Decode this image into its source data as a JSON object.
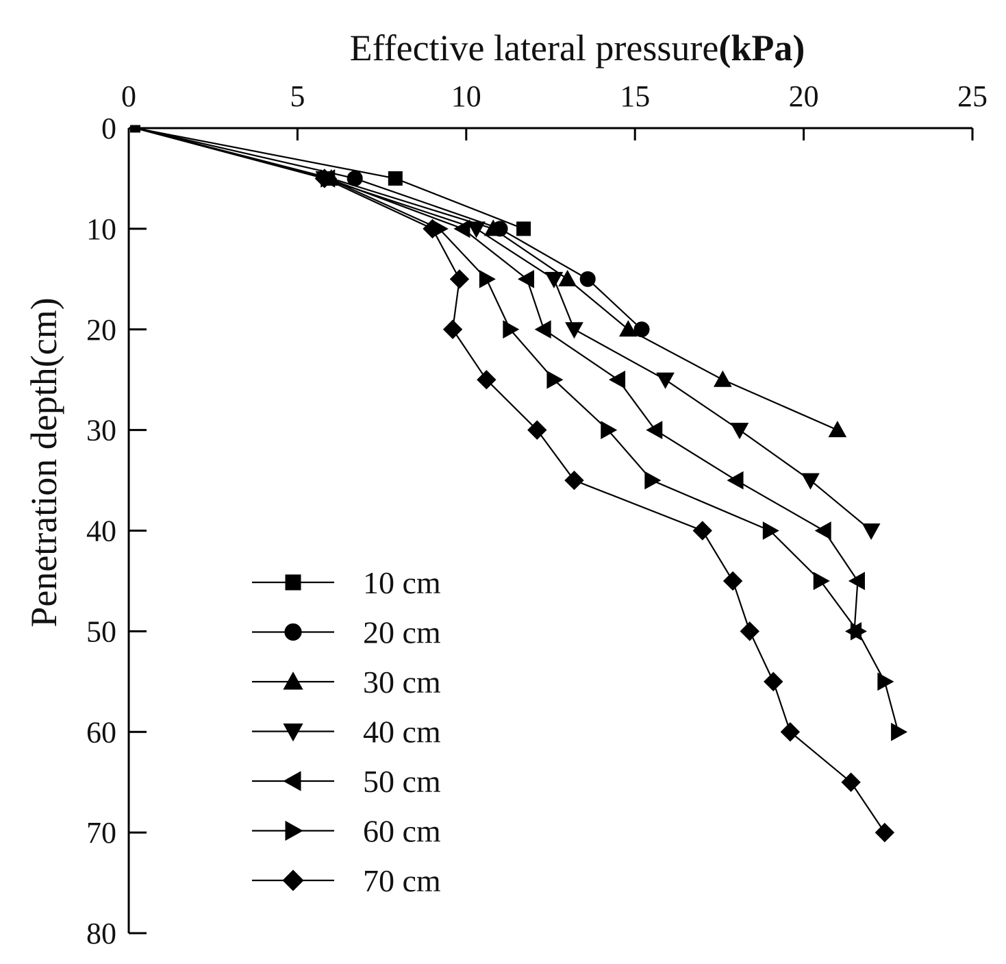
{
  "chart_data": {
    "type": "line",
    "title": "Effective lateral pressure",
    "title_unit": "(kPa)",
    "xlabel": "Effective lateral pressure (kPa)",
    "ylabel": "Penetration depth(cm)",
    "x_axis_position": "top",
    "y_axis_inverted": true,
    "xlim": [
      0,
      25
    ],
    "ylim": [
      0,
      80
    ],
    "xticks": [
      0,
      5,
      10,
      15,
      20,
      25
    ],
    "yticks": [
      0,
      10,
      20,
      30,
      40,
      50,
      60,
      70,
      80
    ],
    "grid": false,
    "legend_position": "bottom-left",
    "series": [
      {
        "name": "10 cm",
        "marker": "square",
        "points": [
          [
            0.2,
            0
          ],
          [
            7.9,
            5
          ],
          [
            11.7,
            10
          ]
        ]
      },
      {
        "name": "20 cm",
        "marker": "circle",
        "points": [
          [
            0.2,
            0
          ],
          [
            6.7,
            5
          ],
          [
            11.0,
            10
          ],
          [
            13.6,
            15
          ],
          [
            15.2,
            20
          ]
        ]
      },
      {
        "name": "30 cm",
        "marker": "triangle-up",
        "points": [
          [
            0.2,
            0
          ],
          [
            6.0,
            5
          ],
          [
            10.8,
            10
          ],
          [
            13.0,
            15
          ],
          [
            14.8,
            20
          ],
          [
            17.6,
            25
          ],
          [
            21.0,
            30
          ]
        ]
      },
      {
        "name": "40 cm",
        "marker": "triangle-down",
        "points": [
          [
            0.2,
            0
          ],
          [
            5.8,
            5
          ],
          [
            10.3,
            10
          ],
          [
            12.6,
            15
          ],
          [
            13.2,
            20
          ],
          [
            15.9,
            25
          ],
          [
            18.1,
            30
          ],
          [
            20.2,
            35
          ],
          [
            22.0,
            40
          ]
        ]
      },
      {
        "name": "50 cm",
        "marker": "triangle-left",
        "points": [
          [
            0.2,
            0
          ],
          [
            5.9,
            5
          ],
          [
            9.9,
            10
          ],
          [
            11.8,
            15
          ],
          [
            12.3,
            20
          ],
          [
            14.5,
            25
          ],
          [
            15.6,
            30
          ],
          [
            18.0,
            35
          ],
          [
            20.6,
            40
          ],
          [
            21.6,
            45
          ],
          [
            21.5,
            50
          ]
        ]
      },
      {
        "name": "60 cm",
        "marker": "triangle-right",
        "points": [
          [
            0.2,
            0
          ],
          [
            5.9,
            5
          ],
          [
            9.2,
            10
          ],
          [
            10.6,
            15
          ],
          [
            11.3,
            20
          ],
          [
            12.6,
            25
          ],
          [
            14.2,
            30
          ],
          [
            15.5,
            35
          ],
          [
            19.0,
            40
          ],
          [
            20.5,
            45
          ],
          [
            21.6,
            50
          ],
          [
            22.4,
            55
          ],
          [
            22.8,
            60
          ]
        ]
      },
      {
        "name": "70 cm",
        "marker": "diamond",
        "points": [
          [
            0.2,
            0
          ],
          [
            5.8,
            5
          ],
          [
            9.0,
            10
          ],
          [
            9.8,
            15
          ],
          [
            9.6,
            20
          ],
          [
            10.6,
            25
          ],
          [
            12.1,
            30
          ],
          [
            13.2,
            35
          ],
          [
            17.0,
            40
          ],
          [
            17.9,
            45
          ],
          [
            18.4,
            50
          ],
          [
            19.1,
            55
          ],
          [
            19.6,
            60
          ],
          [
            21.4,
            65
          ],
          [
            22.4,
            70
          ]
        ]
      }
    ]
  }
}
